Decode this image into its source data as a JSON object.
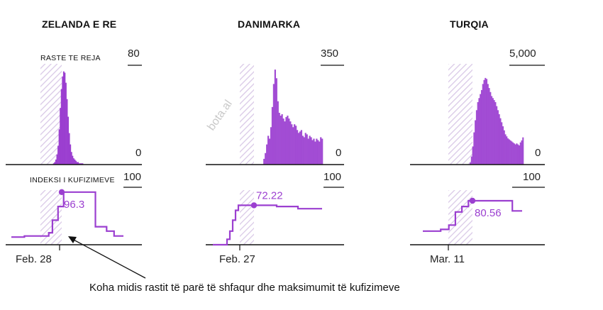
{
  "watermark": "bota.al",
  "annotation": "Koha midis rastit të parë të shfaqur dhe maksimumit të kufizimeve",
  "accent": "#9b3fd0",
  "panel_labels": {
    "cases": "RASTE TE REJA",
    "index": "INDEKSI I KUFIZIMEVE"
  },
  "chart_data": [
    {
      "type": "area",
      "country": "ZELANDA E RE",
      "cases": {
        "y_top_label": "80",
        "y_zero_label": "0",
        "ylim": [
          0,
          80
        ],
        "values": [
          0,
          0,
          0,
          0,
          0,
          0,
          0,
          0,
          0,
          0,
          0,
          0,
          1,
          2,
          4,
          8,
          15,
          28,
          45,
          60,
          70,
          74,
          73,
          65,
          52,
          38,
          25,
          16,
          10,
          7,
          5,
          4,
          3,
          2,
          2,
          1,
          1,
          1,
          1,
          0,
          0,
          0,
          0,
          0,
          0,
          0,
          0,
          0,
          0,
          0,
          0,
          0,
          0,
          0,
          0,
          0,
          0,
          0,
          0,
          0
        ]
      },
      "index": {
        "y_top_label": "100",
        "ylim": [
          0,
          100
        ],
        "max_label": "96.3",
        "max_value": 96.3,
        "steps": [
          [
            0,
            14
          ],
          [
            14,
            14
          ],
          [
            14,
            16
          ],
          [
            40,
            16
          ],
          [
            40,
            22
          ],
          [
            44,
            22
          ],
          [
            44,
            45
          ],
          [
            50,
            45
          ],
          [
            50,
            70
          ],
          [
            56,
            70
          ],
          [
            56,
            96.3
          ],
          [
            68,
            96.3
          ],
          [
            68,
            96.3
          ],
          [
            90,
            96.3
          ],
          [
            90,
            33
          ],
          [
            102,
            33
          ],
          [
            102,
            25
          ],
          [
            110,
            25
          ],
          [
            110,
            16
          ],
          [
            120,
            16
          ]
        ]
      },
      "date_label": "Feb. 28"
    },
    {
      "type": "area",
      "country": "DANIMARKA",
      "cases": {
        "y_top_label": "350",
        "y_zero_label": "0",
        "ylim": [
          0,
          350
        ],
        "values": [
          0,
          0,
          0,
          0,
          0,
          0,
          0,
          0,
          0,
          0,
          0,
          0,
          0,
          0,
          0,
          0,
          0,
          20,
          40,
          70,
          100,
          90,
          130,
          200,
          280,
          330,
          300,
          220,
          180,
          170,
          175,
          160,
          150,
          165,
          170,
          160,
          150,
          140,
          130,
          140,
          135,
          120,
          110,
          115,
          120,
          100,
          95,
          110,
          105,
          90,
          100,
          95,
          85,
          90,
          80,
          90,
          85,
          80,
          95,
          90
        ]
      },
      "index": {
        "y_top_label": "100",
        "ylim": [
          0,
          100
        ],
        "max_label": "72.22",
        "max_value": 72.22,
        "steps": [
          [
            0,
            0
          ],
          [
            20,
            0
          ],
          [
            20,
            10
          ],
          [
            24,
            10
          ],
          [
            24,
            25
          ],
          [
            28,
            25
          ],
          [
            28,
            45
          ],
          [
            32,
            45
          ],
          [
            32,
            63
          ],
          [
            36,
            63
          ],
          [
            36,
            72.22
          ],
          [
            60,
            72.22
          ],
          [
            60,
            72.22
          ],
          [
            90,
            72.22
          ],
          [
            90,
            70
          ],
          [
            120,
            70
          ],
          [
            120,
            66
          ],
          [
            154,
            66
          ]
        ]
      },
      "date_label": "Feb. 27"
    },
    {
      "type": "area",
      "country": "TURQIA",
      "cases": {
        "y_top_label": "5,000",
        "y_zero_label": "0",
        "ylim": [
          0,
          5000
        ],
        "values": [
          0,
          0,
          0,
          0,
          0,
          0,
          0,
          0,
          0,
          0,
          0,
          0,
          0,
          0,
          0,
          0,
          0,
          100,
          400,
          900,
          1600,
          2200,
          2700,
          3100,
          3300,
          3500,
          3700,
          4000,
          4200,
          4300,
          4250,
          4000,
          3800,
          3600,
          3400,
          3300,
          3200,
          3100,
          2900,
          2700,
          2500,
          2300,
          2100,
          1900,
          1700,
          1500,
          1400,
          1300,
          1250,
          1200,
          1150,
          1100,
          1050,
          1000,
          1050,
          1000,
          950,
          1100,
          1200,
          1350
        ]
      },
      "index": {
        "y_top_label": "100",
        "ylim": [
          0,
          100
        ],
        "max_label": "80.56",
        "max_value": 80.56,
        "steps": [
          [
            0,
            25
          ],
          [
            22,
            25
          ],
          [
            22,
            28
          ],
          [
            32,
            28
          ],
          [
            32,
            36
          ],
          [
            40,
            36
          ],
          [
            40,
            60
          ],
          [
            48,
            60
          ],
          [
            48,
            70
          ],
          [
            56,
            70
          ],
          [
            56,
            80.56
          ],
          [
            70,
            80.56
          ],
          [
            70,
            80.56
          ],
          [
            110,
            80.56
          ],
          [
            110,
            62
          ],
          [
            122,
            62
          ]
        ]
      },
      "date_label": "Mar. 11"
    }
  ]
}
